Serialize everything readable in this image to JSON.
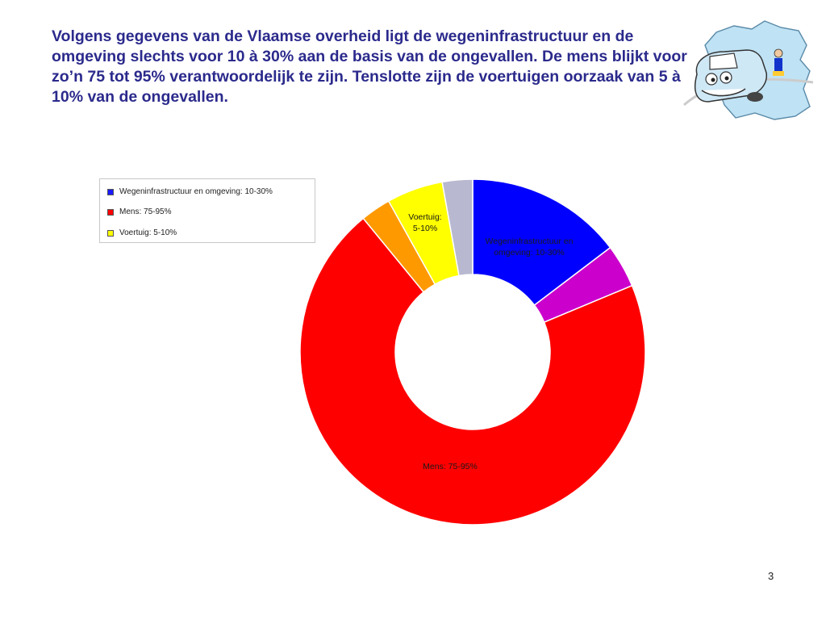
{
  "slide": {
    "text": "Volgens gegevens van de Vlaamse overheid ligt de wegeninfrastructuur en de omgeving slechts voor 10 à 30% aan de basis van de ongevallen. De mens blijkt voor zo’n 75 tot 95% verantwoordelijk te zijn. Tenslotte zijn de voertuigen oorzaak van 5 à 10% van de ongevallen.",
    "page_number": "3"
  },
  "logo": {
    "icon": "cartoon-car-flanders-map-icon"
  },
  "chart_data": {
    "type": "pie",
    "variant": "donut",
    "title": "",
    "legend": {
      "position": "top-left",
      "entries": [
        {
          "label": "Wegeninfrastructuur en omgeving: 10-30%",
          "color": "#1a1aff"
        },
        {
          "label": "Mens: 75-95%",
          "color": "#ff0000"
        },
        {
          "label": "Voertuig: 5-10%",
          "color": "#ffff00"
        }
      ]
    },
    "slices": [
      {
        "name": "Wegeninfrastructuur en omgeving: 10-30%",
        "value": 14.5,
        "color": "#0000ff",
        "label_lines": [
          "Wegeninfrastructuur en",
          "omgeving: 10-30%"
        ]
      },
      {
        "name": "",
        "value": 4,
        "color": "#cc00cc",
        "label_lines": []
      },
      {
        "name": "Mens: 75-95%",
        "value": 69.5,
        "color": "#ff0000",
        "label_lines": [
          "Mens: 75-95%"
        ]
      },
      {
        "name": "",
        "value": 2.8,
        "color": "#ff9900",
        "label_lines": []
      },
      {
        "name": "Voertuig: 5-10%",
        "value": 5.2,
        "color": "#ffff00",
        "label_lines": [
          "Voertuig:",
          "5-10%"
        ]
      },
      {
        "name": "",
        "value": 2.8,
        "color": "#b8b8d0",
        "label_lines": []
      }
    ]
  }
}
